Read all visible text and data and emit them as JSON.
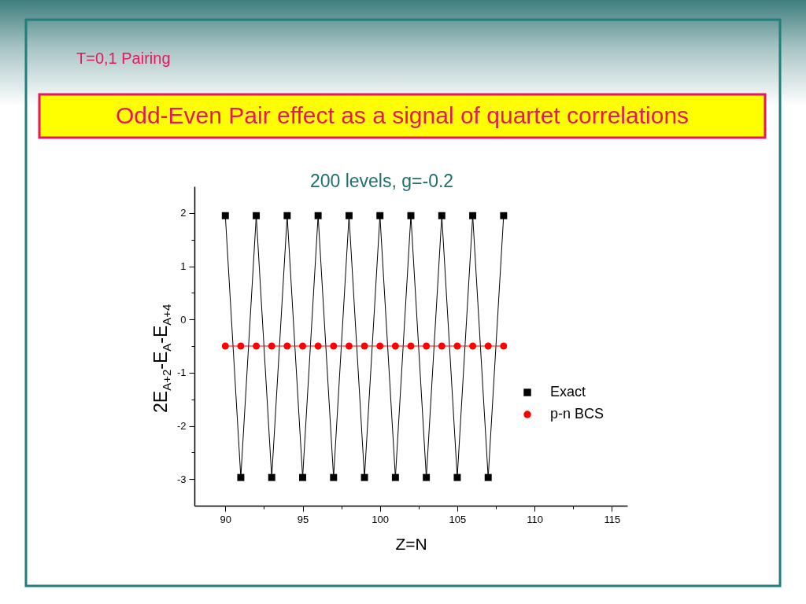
{
  "chart_data": {
    "type": "line",
    "title": "200 levels, g=-0.2",
    "annotations": [
      "T=0,1 Pairing",
      "Odd-Even Pair effect as a signal of quartet correlations"
    ],
    "xlabel": "Z=N",
    "ylabel": "2E$_{A+2}$-E$_{A}$-E$_{A+4}$",
    "x": [
      90,
      91,
      92,
      93,
      94,
      95,
      96,
      97,
      98,
      99,
      100,
      101,
      102,
      103,
      104,
      105,
      106,
      107,
      108
    ],
    "series": [
      {
        "name": "Exact",
        "color": "#000000",
        "marker": "square",
        "values": [
          1.95,
          -2.97,
          1.95,
          -2.97,
          1.95,
          -2.97,
          1.95,
          -2.97,
          1.95,
          -2.97,
          1.95,
          -2.97,
          1.95,
          -2.97,
          1.95,
          -2.97,
          1.95,
          -2.97,
          1.95
        ]
      },
      {
        "name": "p-n BCS",
        "color": "#ff0000",
        "marker": "circle",
        "values": [
          -0.5,
          -0.5,
          -0.5,
          -0.5,
          -0.5,
          -0.5,
          -0.5,
          -0.5,
          -0.5,
          -0.5,
          -0.5,
          -0.5,
          -0.5,
          -0.5,
          -0.5,
          -0.5,
          -0.5,
          -0.5,
          -0.5
        ]
      }
    ],
    "xlim": [
      88,
      116
    ],
    "ylim": [
      -3.5,
      2.5
    ],
    "xticks": [
      90,
      {
        "value": 92.5,
        "label": null
      },
      95,
      {
        "value": 97.5,
        "label": null
      },
      100,
      {
        "value": 102.5,
        "label": null
      },
      105,
      {
        "value": 107.5,
        "label": null
      },
      110,
      {
        "value": 112.5,
        "label": null
      },
      115
    ],
    "yticks": [
      -3,
      {
        "value": -2.5,
        "label": null
      },
      -2,
      {
        "value": -1.5,
        "label": null
      },
      -1,
      {
        "value": -0.5,
        "label": null
      },
      0,
      {
        "value": 0.5,
        "label": null
      },
      1,
      {
        "value": 1.5,
        "label": null
      },
      2
    ],
    "legend": "right",
    "line_style": "solid"
  }
}
